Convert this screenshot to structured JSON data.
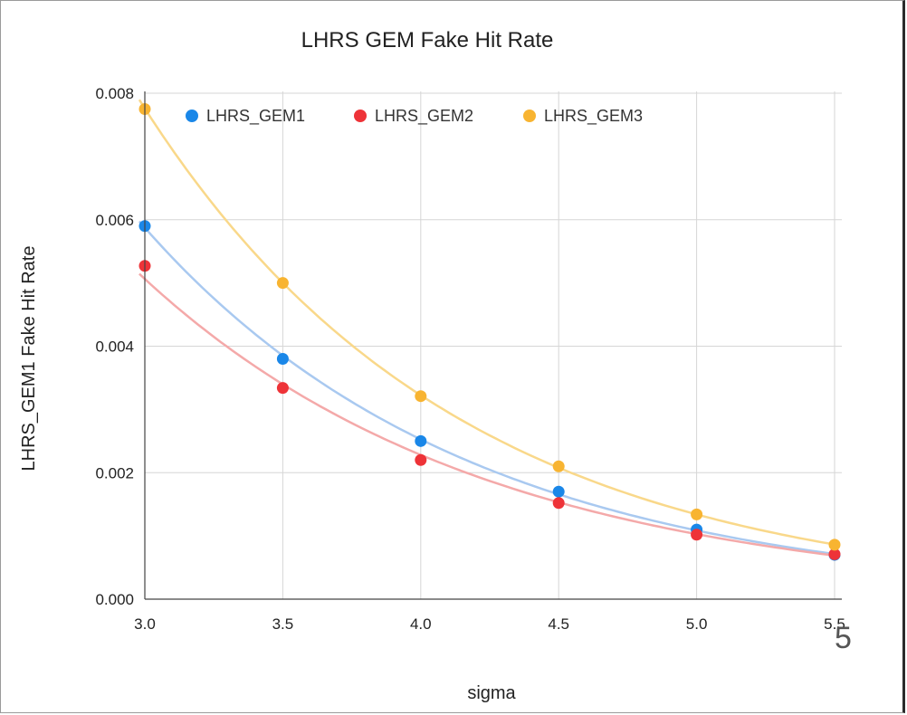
{
  "chart_data": {
    "type": "scatter",
    "title": "LHRS GEM Fake Hit Rate",
    "xlabel": "sigma",
    "ylabel": "LHRS_GEM1 Fake Hit Rate",
    "xlim": [
      3.0,
      5.5
    ],
    "ylim": [
      0.0,
      0.008
    ],
    "x_ticks": [
      "3.0",
      "3.5",
      "4.0",
      "4.5",
      "5.0",
      "5.5"
    ],
    "y_ticks": [
      "0.000",
      "0.002",
      "0.004",
      "0.006",
      "0.008"
    ],
    "grid": true,
    "legend_position": "top",
    "trendline": "exponential",
    "x": [
      3.0,
      3.5,
      4.0,
      4.5,
      5.0,
      5.5
    ],
    "series": [
      {
        "name": "LHRS_GEM1",
        "color": "#1a87e8",
        "trend_color": "#a9c9f0",
        "values": [
          0.0059,
          0.0038,
          0.0025,
          0.0017,
          0.0011,
          0.0007
        ]
      },
      {
        "name": "LHRS_GEM2",
        "color": "#ee3338",
        "trend_color": "#f4a9a9",
        "values": [
          0.00527,
          0.00334,
          0.0022,
          0.00152,
          0.00102,
          0.00071
        ]
      },
      {
        "name": "LHRS_GEM3",
        "color": "#f8b431",
        "trend_color": "#f9d88a",
        "values": [
          0.00775,
          0.005,
          0.00321,
          0.0021,
          0.00134,
          0.00086
        ]
      }
    ]
  },
  "page_number": "5"
}
